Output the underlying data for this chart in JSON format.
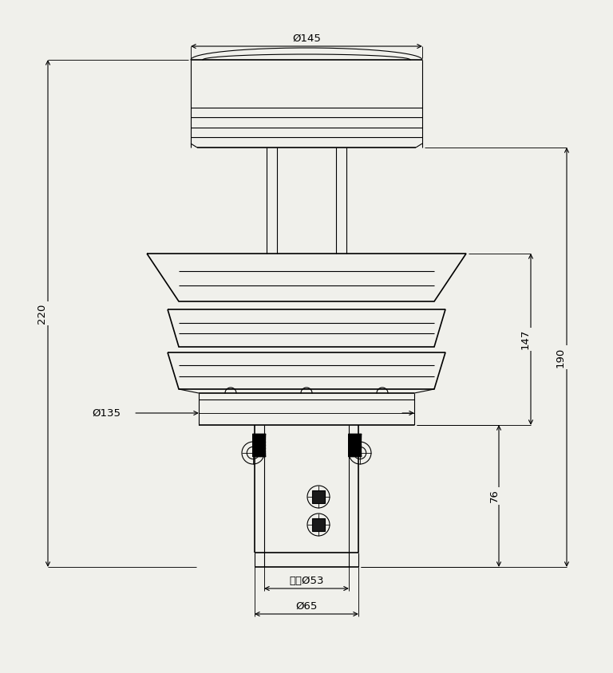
{
  "bg_color": "#f0f0eb",
  "line_color": "#000000",
  "lw": 0.8,
  "lw_thick": 1.2,
  "dim_145_label": "Ø145",
  "dim_135_label": "Ø135",
  "dim_220_label": "220",
  "dim_190_label": "190",
  "dim_147_label": "147",
  "dim_76_label": "76",
  "dim_53_label": "内径Ø53",
  "dim_65_label": "Ø65"
}
